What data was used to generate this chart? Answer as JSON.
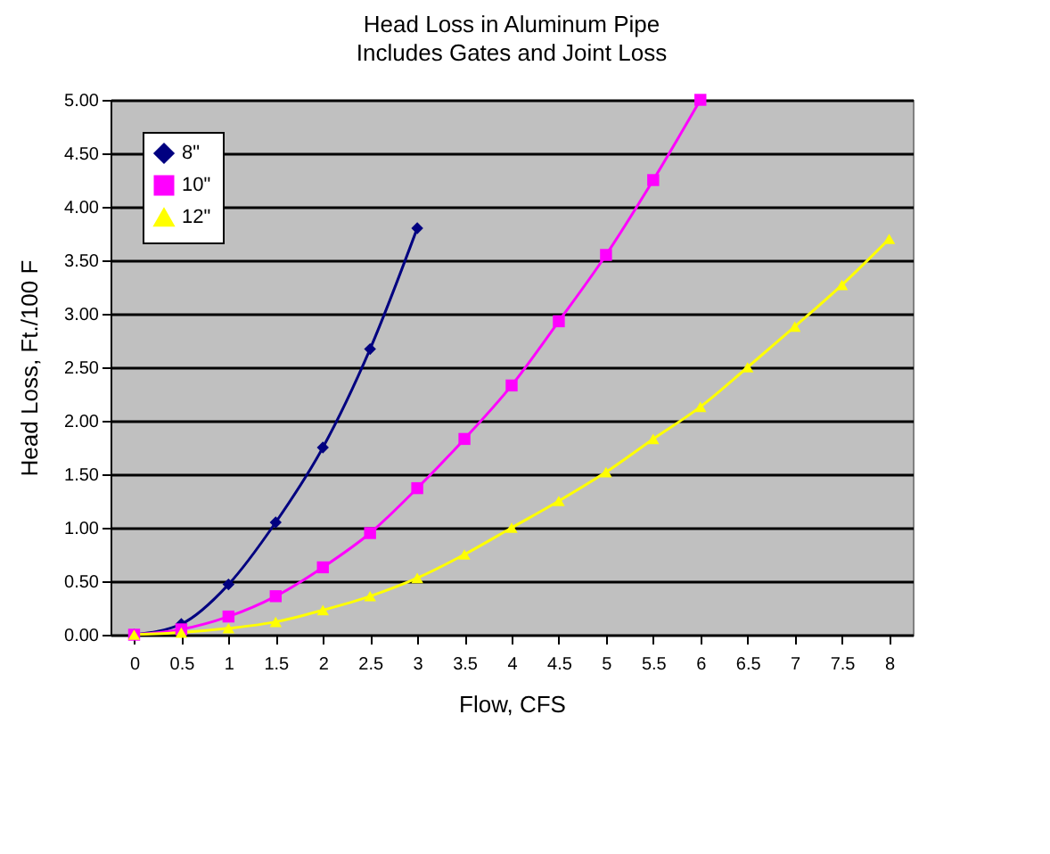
{
  "chart_data": {
    "type": "line",
    "title": "Head Loss in Aluminum Pipe",
    "subtitle": "Includes Gates and Joint Loss",
    "xlabel": "Flow, CFS",
    "ylabel": "Head Loss, Ft./100 F",
    "categories": [
      "0",
      "0.5",
      "1",
      "1.5",
      "2",
      "2.5",
      "3",
      "3.5",
      "4",
      "4.5",
      "5",
      "5.5",
      "6",
      "6.5",
      "7",
      "7.5",
      "8"
    ],
    "series": [
      {
        "name": "8\"",
        "color": "#000080",
        "marker": "diamond",
        "values": [
          0,
          0.1,
          0.47,
          1.05,
          1.75,
          2.67,
          3.8,
          null,
          null,
          null,
          null,
          null,
          null,
          null,
          null,
          null,
          null
        ]
      },
      {
        "name": "10\"",
        "color": "#ff00ff",
        "marker": "square",
        "values": [
          0,
          0.05,
          0.17,
          0.36,
          0.63,
          0.95,
          1.37,
          1.83,
          2.33,
          2.93,
          3.55,
          4.25,
          5.0,
          null,
          null,
          null,
          null
        ]
      },
      {
        "name": "12\"",
        "color": "#ffff00",
        "marker": "triangle",
        "values": [
          0,
          0.02,
          0.06,
          0.12,
          0.23,
          0.36,
          0.53,
          0.75,
          1.0,
          1.25,
          1.52,
          1.83,
          2.13,
          2.5,
          2.88,
          3.27,
          3.7
        ]
      }
    ],
    "ylim": [
      0,
      5
    ],
    "yticks": [
      {
        "value": 0,
        "label": "0.00"
      },
      {
        "value": 0.5,
        "label": "0.50"
      },
      {
        "value": 1,
        "label": "1.00"
      },
      {
        "value": 1.5,
        "label": "1.50"
      },
      {
        "value": 2,
        "label": "2.00"
      },
      {
        "value": 2.5,
        "label": "2.50"
      },
      {
        "value": 3,
        "label": "3.00"
      },
      {
        "value": 3.5,
        "label": "3.50"
      },
      {
        "value": 4,
        "label": "4.00"
      },
      {
        "value": 4.5,
        "label": "4.50"
      },
      {
        "value": 5,
        "label": "5.00"
      }
    ],
    "grid": "y",
    "legend": "top left"
  }
}
